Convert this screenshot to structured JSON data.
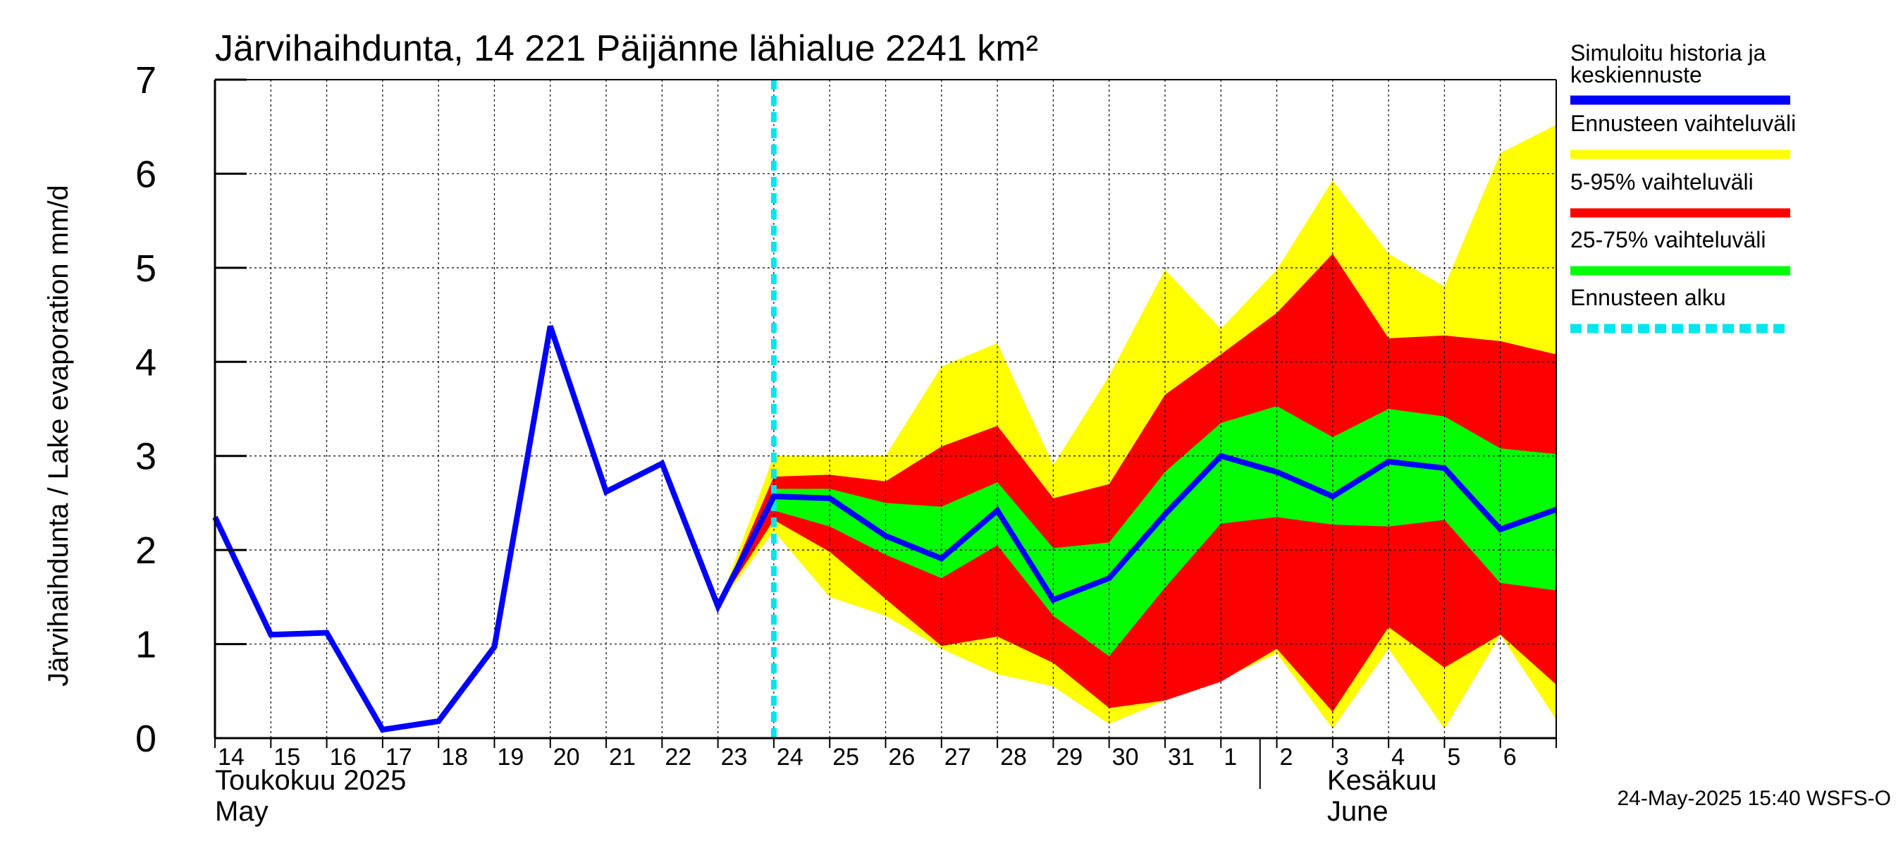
{
  "chart_data": {
    "type": "line",
    "title": "Järvihaihdunta, 14 221 Päijänne lähialue 2241 km²",
    "ylabel": "Järvihaihdunta / Lake evaporation   mm/d",
    "ylim": [
      0,
      7
    ],
    "yticks": [
      0,
      1,
      2,
      3,
      4,
      5,
      6,
      7
    ],
    "grid": true,
    "x": [
      "14",
      "15",
      "16",
      "17",
      "18",
      "19",
      "20",
      "21",
      "22",
      "23",
      "24",
      "25",
      "26",
      "27",
      "28",
      "29",
      "30",
      "31",
      "1",
      "2",
      "3",
      "4",
      "5",
      "6"
    ],
    "xrange": [
      0,
      24
    ],
    "month_labels": [
      {
        "fi": "Toukokuu  2025",
        "en": "May",
        "at": 0
      },
      {
        "fi": "Kesäkuu",
        "en": "June",
        "at": 19.9
      }
    ],
    "month_divider_at": 18.7,
    "forecast_start": 10,
    "history": {
      "name": "Simuloitu historia ja keskiennuste",
      "x": [
        0,
        1,
        2,
        3,
        4,
        5,
        6,
        7,
        8,
        9,
        10
      ],
      "values": [
        2.35,
        1.1,
        1.12,
        0.09,
        0.18,
        0.97,
        4.38,
        2.62,
        2.92,
        1.4,
        2.57
      ]
    },
    "median": {
      "x": [
        9,
        10,
        11,
        12,
        13,
        14,
        15,
        16,
        17,
        18,
        19,
        20,
        21,
        22,
        23,
        24
      ],
      "values": [
        1.4,
        2.57,
        2.55,
        2.15,
        1.91,
        2.42,
        1.47,
        1.7,
        2.38,
        3.0,
        2.83,
        2.57,
        2.94,
        2.87,
        2.22,
        2.43
      ]
    },
    "bands": [
      {
        "name": "Ennusteen vaihteluväli",
        "color": "#ffff00",
        "x": [
          9,
          10,
          11,
          12,
          13,
          14,
          15,
          16,
          17,
          18,
          19,
          20,
          21,
          22,
          23,
          24
        ],
        "low": [
          1.4,
          2.2,
          1.5,
          1.3,
          0.95,
          0.68,
          0.55,
          0.15,
          0.4,
          0.62,
          0.9,
          0.1,
          0.95,
          0.1,
          1.1,
          0.2
        ],
        "high": [
          1.4,
          3.0,
          3.0,
          3.0,
          3.95,
          4.2,
          2.9,
          3.85,
          4.98,
          4.35,
          4.98,
          5.93,
          5.15,
          4.8,
          6.22,
          6.52
        ]
      },
      {
        "name": "5-95% vaihteluväli",
        "color": "#ff0000",
        "x": [
          9,
          10,
          11,
          12,
          13,
          14,
          15,
          16,
          17,
          18,
          19,
          20,
          21,
          22,
          23,
          24
        ],
        "low": [
          1.4,
          2.32,
          1.98,
          1.48,
          0.98,
          1.08,
          0.8,
          0.32,
          0.4,
          0.6,
          0.95,
          0.28,
          1.18,
          0.75,
          1.1,
          0.57
        ],
        "high": [
          1.4,
          2.78,
          2.8,
          2.73,
          3.1,
          3.32,
          2.55,
          2.7,
          3.65,
          4.08,
          4.52,
          5.15,
          4.25,
          4.28,
          4.22,
          4.08
        ]
      },
      {
        "name": "25-75% vaihteluväli",
        "color": "#00ff00",
        "x": [
          10,
          11,
          12,
          13,
          14,
          15,
          16,
          17,
          18,
          19,
          20,
          21,
          22,
          23,
          24
        ],
        "low": [
          2.42,
          2.25,
          1.95,
          1.7,
          2.05,
          1.3,
          0.87,
          1.6,
          2.28,
          2.35,
          2.27,
          2.25,
          2.32,
          1.65,
          1.57
        ],
        "high": [
          2.65,
          2.65,
          2.5,
          2.46,
          2.72,
          2.02,
          2.08,
          2.83,
          3.35,
          3.53,
          3.2,
          3.5,
          3.42,
          3.08,
          3.02
        ]
      }
    ],
    "legend": [
      {
        "label": "Simuloitu historia ja keskiennuste",
        "label_line1": "Simuloitu historia ja",
        "label_line2": "keskiennuste",
        "color": "#0000ff",
        "style": "solid"
      },
      {
        "label": "Ennusteen vaihteluväli",
        "color": "#ffff00",
        "style": "solid"
      },
      {
        "label": "5-95% vaihteluväli",
        "color": "#ff0000",
        "style": "solid"
      },
      {
        "label": "25-75% vaihteluväli",
        "color": "#00ff00",
        "style": "solid"
      },
      {
        "label": "Ennusteen alku",
        "color": "#00e5ee",
        "style": "dashed"
      }
    ],
    "footer": "24-May-2025 15:40 WSFS-O"
  }
}
